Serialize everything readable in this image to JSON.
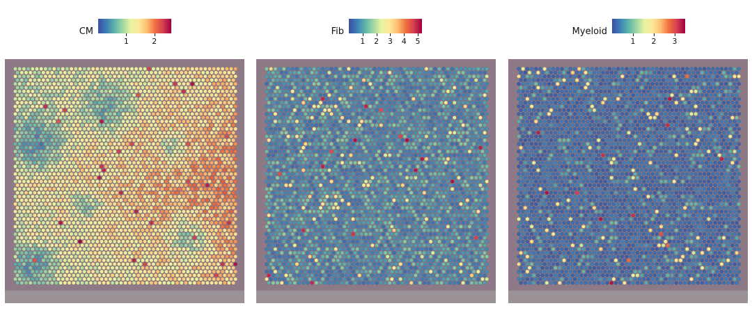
{
  "chart_data": [
    {
      "type": "heatmap",
      "subtype": "spatial-spot-map",
      "title": "",
      "legend_title": "CM",
      "colormap": "Spectral_r",
      "colorbar_ticks": [
        "1",
        "2"
      ],
      "value_range": [
        0.0,
        2.6
      ],
      "tick_values": [
        1,
        2
      ],
      "background_tissue_color": "#8a7283",
      "pattern": "high values (yellow) concentrated in center and right; low values (blue) patches at left and upper middle"
    },
    {
      "type": "heatmap",
      "subtype": "spatial-spot-map",
      "title": "",
      "legend_title": "Fib",
      "colormap": "Spectral_r",
      "colorbar_ticks": [
        "1",
        "2",
        "3",
        "4",
        "5"
      ],
      "value_range": [
        0.0,
        5.3
      ],
      "tick_values": [
        1,
        2,
        3,
        4,
        5
      ],
      "background_tissue_color": "#8a7283",
      "pattern": "mostly low (blue/purple) with scattered green and yellow spots"
    },
    {
      "type": "heatmap",
      "subtype": "spatial-spot-map",
      "title": "",
      "legend_title": "Myeloid",
      "colormap": "Spectral_r",
      "colorbar_ticks": [
        "1",
        "2",
        "3"
      ],
      "value_range": [
        0.0,
        3.5
      ],
      "tick_values": [
        1,
        2,
        3
      ],
      "background_tissue_color": "#8a7283",
      "pattern": "predominantly low (purple) with sparse bright yellow/red spots"
    }
  ]
}
